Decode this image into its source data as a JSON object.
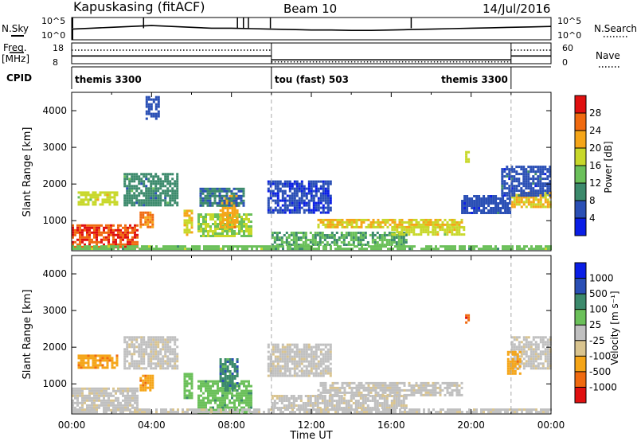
{
  "header": {
    "station": "Kapuskasing (fitACF)",
    "beam": "Beam 10",
    "date": "14/Jul/2016"
  },
  "colors": {
    "power_scale": [
      "#0a1ee6",
      "#2a4fb5",
      "#3c8a6c",
      "#6bc05a",
      "#c8d82a",
      "#f5a518",
      "#f06a10",
      "#e01010"
    ],
    "velocity_scale": [
      "#e01010",
      "#f06a10",
      "#f5a518",
      "#d9c48f",
      "#c0c0c0",
      "#6bc05a",
      "#3c8a6c",
      "#2a4fb5",
      "#0a1ee6"
    ],
    "ground_scatter": "#c0c0c0"
  },
  "chart_data": [
    {
      "id": "nsky_nsearch",
      "type": "line",
      "left_label": "N.Sky",
      "right_label": "N.Search",
      "left_ticks": [
        "10^5",
        "10^0"
      ],
      "right_ticks": [
        "10^5",
        "10^0"
      ],
      "x": [
        0,
        1,
        2,
        3,
        4,
        5,
        6,
        7,
        8,
        9,
        10,
        11,
        12,
        13,
        14,
        15,
        16,
        17,
        18,
        19,
        20,
        21,
        22,
        23,
        24
      ],
      "series": [
        {
          "values": [
            2.4,
            2.6,
            2.8,
            3.0,
            3.2,
            3.0,
            2.8,
            2.6,
            2.6,
            2.5,
            2.4,
            2.3,
            2.2,
            2.2,
            2.1,
            2.1,
            2.2,
            2.3,
            2.4,
            2.5,
            2.6,
            2.7,
            2.8,
            2.9,
            3.0
          ]
        }
      ],
      "spikes_hours": [
        0.05,
        3.6,
        8.3,
        8.6,
        8.85,
        9.95,
        17.0
      ]
    },
    {
      "id": "freq_nave",
      "type": "line",
      "left_label": "Freq.",
      "left_unit": "[MHz]",
      "right_label": "Nave",
      "left_ticks": [
        "18",
        "8"
      ],
      "right_ticks": [
        "60",
        "0"
      ],
      "freq_mhz": [
        {
          "x0": 0,
          "x1": 10,
          "y": 11.5
        },
        {
          "x0": 10,
          "x1": 22,
          "y": 9.3
        },
        {
          "x0": 22,
          "x1": 24,
          "y": 11.5
        }
      ],
      "nave": [
        {
          "x0": 0,
          "x1": 10,
          "y": 40
        },
        {
          "x0": 10,
          "x1": 22,
          "y": 3
        },
        {
          "x0": 22,
          "x1": 24,
          "y": 40
        }
      ]
    },
    {
      "id": "cpid",
      "type": "table",
      "label": "CPID",
      "segments": [
        {
          "x0": 0,
          "x1": 10,
          "name": "themis 3300"
        },
        {
          "x0": 10,
          "x1": 22,
          "name": "tou (fast) 503"
        },
        {
          "x0": 22,
          "x1": 24,
          "name": "themis 3300",
          "align": "right"
        }
      ]
    },
    {
      "id": "power",
      "type": "heatmap",
      "ylabel": "Slant Range [km]",
      "xlim": [
        0,
        24
      ],
      "ylim": [
        180,
        4500
      ],
      "yticks": [
        1000,
        2000,
        3000,
        4000
      ],
      "colorbar": {
        "label": "Power [dB]",
        "range": [
          0,
          32
        ],
        "ticks": [
          4,
          8,
          12,
          16,
          20,
          24,
          28
        ]
      },
      "regions": [
        {
          "t0": 0.0,
          "t1": 3.3,
          "r0": 300,
          "r1": 900,
          "v": 28
        },
        {
          "t0": 0.3,
          "t1": 2.3,
          "r0": 1450,
          "r1": 1800,
          "v": 18
        },
        {
          "t0": 3.4,
          "t1": 4.0,
          "r0": 800,
          "r1": 1250,
          "v": 24
        },
        {
          "t0": 5.6,
          "t1": 6.0,
          "r0": 600,
          "r1": 1300,
          "v": 20
        },
        {
          "t0": 6.3,
          "t1": 9.0,
          "r0": 600,
          "r1": 1200,
          "v": 16
        },
        {
          "t0": 7.4,
          "t1": 8.3,
          "r0": 800,
          "r1": 1700,
          "v": 22
        },
        {
          "t0": 2.6,
          "t1": 5.3,
          "r0": 1450,
          "r1": 2300,
          "v": 10
        },
        {
          "t0": 6.4,
          "t1": 8.6,
          "r0": 1400,
          "r1": 1900,
          "v": 8
        },
        {
          "t0": 10.0,
          "t1": 16.8,
          "r0": 350,
          "r1": 700,
          "v": 12
        },
        {
          "t0": 12.3,
          "t1": 19.5,
          "r0": 850,
          "r1": 1050,
          "v": 20
        },
        {
          "t0": 16.0,
          "t1": 19.6,
          "r0": 650,
          "r1": 850,
          "v": 18
        },
        {
          "t0": 9.8,
          "t1": 13.0,
          "r0": 1250,
          "r1": 2100,
          "v": 5
        },
        {
          "t0": 19.5,
          "t1": 22.0,
          "r0": 1200,
          "r1": 1700,
          "v": 6
        },
        {
          "t0": 22.0,
          "t1": 24.0,
          "r0": 1400,
          "r1": 1800,
          "v": 20
        },
        {
          "t0": 21.5,
          "t1": 24.0,
          "r0": 1700,
          "r1": 2500,
          "v": 6
        },
        {
          "t0": 19.7,
          "t1": 19.9,
          "r0": 2600,
          "r1": 2900,
          "v": 18
        },
        {
          "t0": 3.7,
          "t1": 4.3,
          "r0": 3800,
          "r1": 4400,
          "v": 6
        },
        {
          "t0": 0.0,
          "t1": 24.0,
          "r0": 200,
          "r1": 330,
          "v": 14
        }
      ]
    },
    {
      "id": "velocity",
      "type": "heatmap",
      "ylabel": "Slant Range [km]",
      "xlabel": "Time UT",
      "xlim": [
        0,
        24
      ],
      "ylim": [
        180,
        4500
      ],
      "yticks": [
        1000,
        2000,
        3000,
        4000
      ],
      "xticks": [
        "00:00",
        "04:00",
        "08:00",
        "12:00",
        "16:00",
        "20:00",
        "00:00"
      ],
      "colorbar": {
        "label": "Velocity [m s⁻¹]",
        "ticks": [
          "1000",
          "500",
          "100",
          "25",
          "-25",
          "-100",
          "-500",
          "-1000"
        ]
      },
      "regions": [
        {
          "t0": 0.0,
          "t1": 3.3,
          "r0": 300,
          "r1": 900,
          "v": 0
        },
        {
          "t0": 0.3,
          "t1": 2.3,
          "r0": 1450,
          "r1": 1800,
          "v": -120
        },
        {
          "t0": 3.4,
          "t1": 4.0,
          "r0": 800,
          "r1": 1250,
          "v": -200
        },
        {
          "t0": 5.6,
          "t1": 6.0,
          "r0": 600,
          "r1": 1300,
          "v": 80
        },
        {
          "t0": 6.3,
          "t1": 9.0,
          "r0": 200,
          "r1": 1100,
          "v": 80
        },
        {
          "t0": 7.4,
          "t1": 8.3,
          "r0": 800,
          "r1": 1700,
          "v": 200
        },
        {
          "t0": 2.6,
          "t1": 5.3,
          "r0": 1450,
          "r1": 2300,
          "v": 0
        },
        {
          "t0": 10.0,
          "t1": 16.8,
          "r0": 350,
          "r1": 700,
          "v": 0
        },
        {
          "t0": 12.3,
          "t1": 19.5,
          "r0": 700,
          "r1": 1050,
          "v": 0
        },
        {
          "t0": 9.8,
          "t1": 13.0,
          "r0": 1250,
          "r1": 2100,
          "v": 0
        },
        {
          "t0": 19.7,
          "t1": 19.9,
          "r0": 2600,
          "r1": 2900,
          "v": -800
        },
        {
          "t0": 22.0,
          "t1": 24.0,
          "r0": 1400,
          "r1": 2300,
          "v": 0
        },
        {
          "t0": 21.8,
          "t1": 22.4,
          "r0": 1300,
          "r1": 1900,
          "v": -200
        },
        {
          "t0": 0.0,
          "t1": 24.0,
          "r0": 200,
          "r1": 330,
          "v": 0
        }
      ]
    }
  ]
}
